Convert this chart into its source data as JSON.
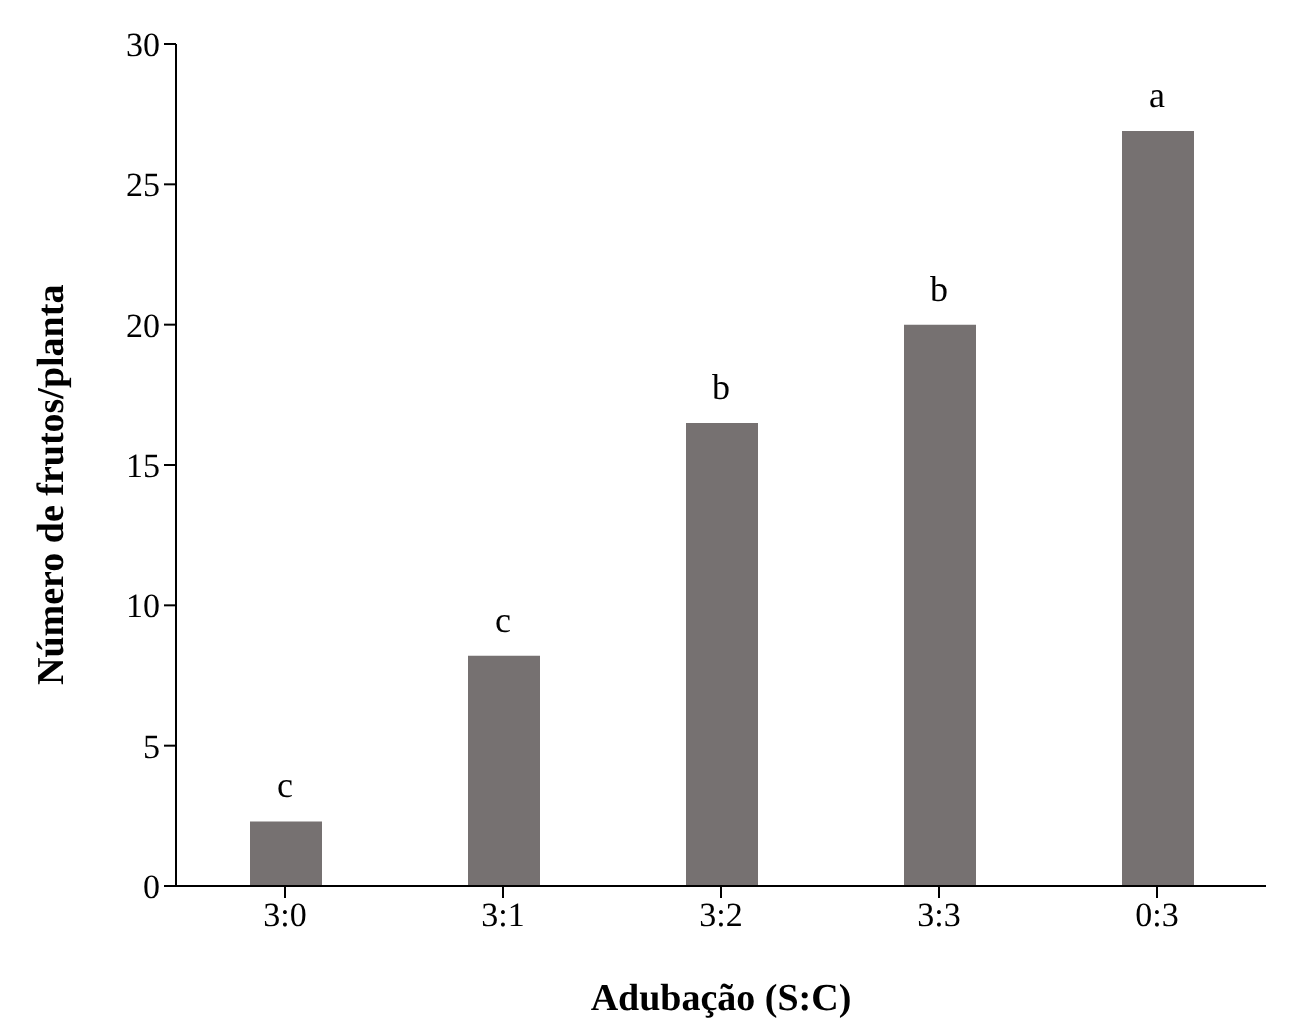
{
  "chart_data": {
    "type": "bar",
    "xlabel": "Adubação (S:C)",
    "ylabel": "Número de frutos/planta",
    "categories": [
      "3:0",
      "3:1",
      "3:2",
      "3:3",
      "0:3"
    ],
    "values": [
      2.3,
      8.2,
      16.5,
      20,
      26.9
    ],
    "color": "#767171",
    "ylim": [
      0,
      30
    ],
    "yticks": [
      0,
      5,
      10,
      15,
      20,
      25,
      30
    ],
    "grid": false,
    "legend": false,
    "annotations": [
      {
        "text": "c",
        "x": "3:0",
        "y": 2.3
      },
      {
        "text": "c",
        "x": "3:1",
        "y": 8.2
      },
      {
        "text": "b",
        "x": "3:2",
        "y": 16.5
      },
      {
        "text": "b",
        "x": "3:3",
        "y": 20
      },
      {
        "text": "a",
        "x": "0:3",
        "y": 26.9
      }
    ]
  }
}
